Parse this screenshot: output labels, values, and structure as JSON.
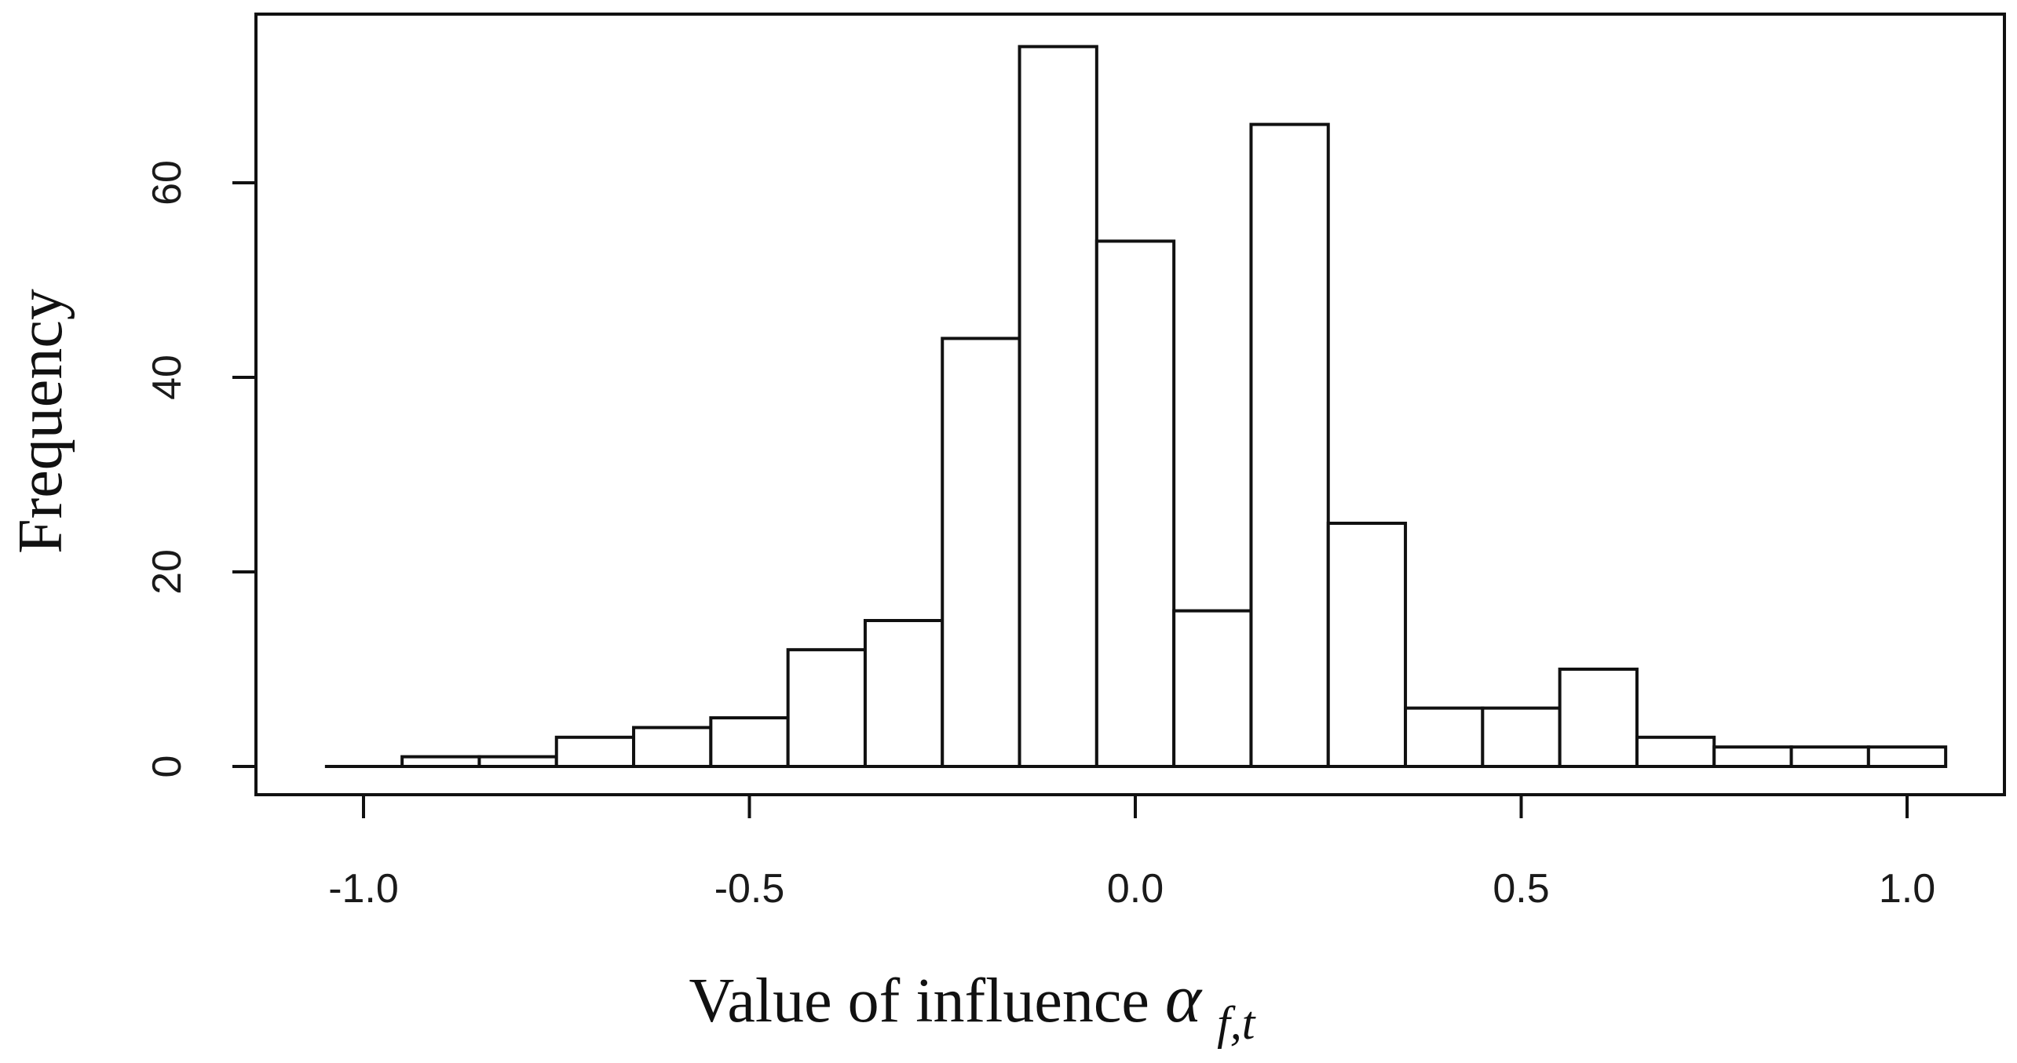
{
  "chart_data": {
    "type": "bar",
    "subtype": "histogram",
    "title": "",
    "xlabel": "Value of influence ",
    "xlabel_symbol": "α",
    "xlabel_subscript": "f,t",
    "ylabel": "Frequency",
    "xlim": [
      -1.1,
      1.15
    ],
    "ylim": [
      -3,
      78
    ],
    "grid": false,
    "legend": "none",
    "bin_width": 0.1,
    "bin_edges": [
      -1.05,
      -0.95,
      -0.85,
      -0.75,
      -0.65,
      -0.55,
      -0.45,
      -0.35,
      -0.25,
      -0.15,
      -0.05,
      0.05,
      0.15,
      0.25,
      0.35,
      0.45,
      0.55,
      0.65,
      0.75,
      0.85,
      0.95,
      1.05
    ],
    "values": [
      0,
      1,
      1,
      3,
      4,
      5,
      12,
      15,
      44,
      74,
      54,
      16,
      66,
      25,
      6,
      6,
      10,
      3,
      2,
      2,
      2
    ],
    "x_ticks": [
      -1.0,
      -0.5,
      0.0,
      0.5,
      1.0
    ],
    "x_tick_labels": [
      "-1.0",
      "-0.5",
      "0.0",
      "0.5",
      "1.0"
    ],
    "y_ticks": [
      0,
      20,
      40,
      60
    ],
    "y_tick_labels": [
      "0",
      "20",
      "40",
      "60"
    ],
    "colors": {
      "bar_fill": "#ffffff",
      "bar_stroke": "#111111",
      "axis": "#111111"
    }
  }
}
